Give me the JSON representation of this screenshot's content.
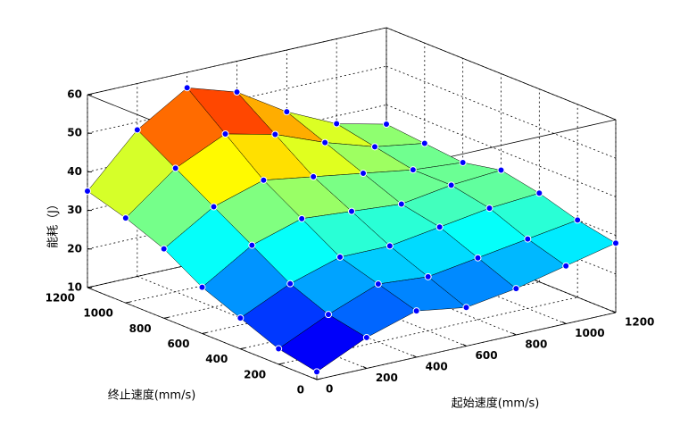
{
  "chart_data": {
    "type": "surface",
    "xlabel": "起始速度(mm/s)",
    "ylabel": "终止速度(mm/s)",
    "zlabel": "能耗（J）",
    "x": [
      0,
      200,
      400,
      600,
      800,
      1000,
      1200
    ],
    "y": [
      0,
      200,
      400,
      600,
      800,
      1000,
      1200
    ],
    "z": [
      [
        12,
        18,
        22,
        20,
        22,
        25,
        28
      ],
      [
        14,
        20,
        25,
        24,
        26,
        28,
        30
      ],
      [
        18,
        24,
        28,
        28,
        30,
        32,
        33
      ],
      [
        22,
        30,
        34,
        33,
        32,
        34,
        35
      ],
      [
        28,
        36,
        40,
        38,
        36,
        34,
        33
      ],
      [
        32,
        42,
        48,
        45,
        40,
        36,
        34
      ],
      [
        35,
        48,
        56,
        52,
        44,
        38,
        35
      ]
    ],
    "xlim": [
      0,
      1200
    ],
    "ylim": [
      0,
      1200
    ],
    "zlim": [
      10,
      60
    ],
    "xticks": [
      0,
      200,
      400,
      600,
      800,
      1000,
      1200
    ],
    "yticks": [
      0,
      200,
      400,
      600,
      800,
      1000,
      1200
    ],
    "zticks": [
      10,
      20,
      30,
      40,
      50,
      60
    ],
    "colormap": "jet",
    "grid": true,
    "marker_color": "#0000ff"
  }
}
